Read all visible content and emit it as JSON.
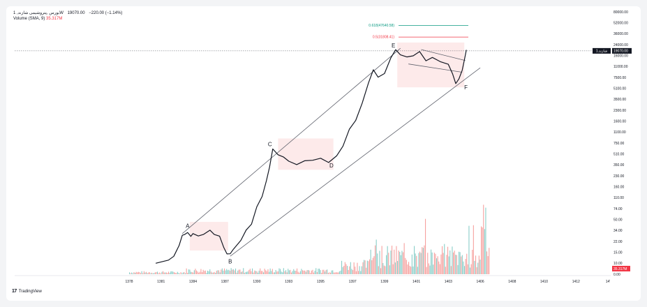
{
  "header": {
    "symbol": "1 ,بورس ,پتروشیمی شازند‌W",
    "last": "19070.00",
    "change": "−220.00 (−1.14%)"
  },
  "volume": {
    "label": "Volume",
    "sma": "(SMA, 9)",
    "value": "35.317M"
  },
  "price_tag": {
    "symbol": "1.شازند",
    "value": "19070.00"
  },
  "volume_tag": "35.317M",
  "branding": {
    "name": "TradingView",
    "logo": "tv-logo-icon"
  },
  "colors": {
    "price": "#131722",
    "volume_up": "#26a69a",
    "volume_down": "#ef5350",
    "fib_618": "#089981",
    "fib_05": "#f23645",
    "zone": "#fde5e5"
  },
  "chart_data": {
    "type": "line",
    "scale": "log",
    "x_ticks": [
      "1378",
      "1381",
      "1384",
      "1387",
      "1390",
      "1393",
      "1395",
      "1397",
      "1399",
      "1401",
      "1403",
      "1406",
      "1408",
      "1410",
      "1412",
      "14'"
    ],
    "y_ticks": [
      "0.00",
      "10.00",
      "15.00",
      "22.00",
      "34.00",
      "50.00",
      "74.00",
      "110.00",
      "160.00",
      "230.00",
      "350.00",
      "510.00",
      "750.00",
      "1100.00",
      "1600.00",
      "2300.00",
      "3500.00",
      "5100.00",
      "7500.00",
      "11000.00",
      "16000.00",
      "24000.00",
      "36000.00",
      "52000.00",
      "80000.00"
    ],
    "current_price": 19070,
    "points": [
      {
        "label": "A",
        "x": "1383.5",
        "y": 31
      },
      {
        "label": "B",
        "x": "1387.5",
        "y": 13.5
      },
      {
        "label": "C",
        "x": "1391.5",
        "y": 580
      },
      {
        "label": "D",
        "x": "1395.5",
        "y": 400
      },
      {
        "label": "E",
        "x": "1400",
        "y": 19000
      },
      {
        "label": "F",
        "x": "1404",
        "y": 6000
      }
    ],
    "fib_levels": [
      {
        "label": "0.618(47640.58)",
        "value": 47640.58
      },
      {
        "label": "0.5(31808.41)",
        "value": 31808.41
      }
    ]
  }
}
